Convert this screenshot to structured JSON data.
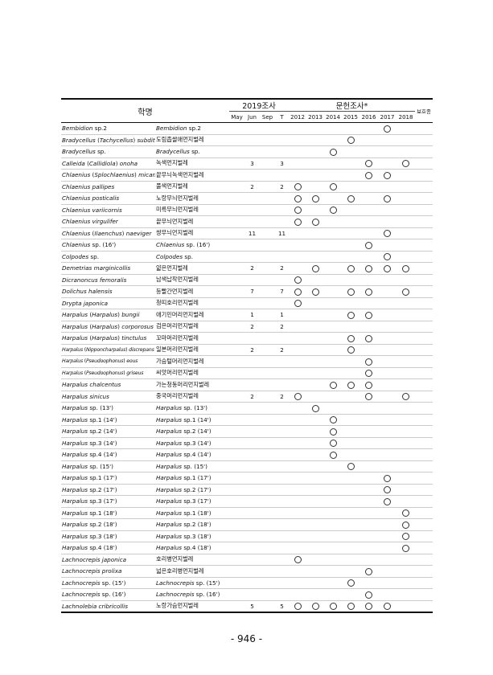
{
  "header": {
    "name_label": "학명",
    "survey_group": "2019조사",
    "lit_group": "문헌조사*",
    "protected_label": "보호종",
    "columns": [
      "May",
      "Jun",
      "Sep",
      "T",
      "2012",
      "2013",
      "2014",
      "2015",
      "2016",
      "2017",
      "2018"
    ]
  },
  "rows": [
    {
      "sci": [
        [
          "Bembidion",
          1
        ],
        [
          " sp.2",
          0
        ]
      ],
      "kor": [
        [
          "Bembidion",
          1
        ],
        [
          " sp.2",
          0
        ]
      ],
      "years": [
        "2017"
      ]
    },
    {
      "sci": [
        [
          "Bradycellus",
          1
        ],
        [
          " (",
          0
        ],
        [
          "Tachycellus",
          1
        ],
        [
          ") ",
          0
        ],
        [
          "subditus",
          1
        ]
      ],
      "kor": [
        [
          "도림좁쌀애먼지벌레",
          0
        ]
      ],
      "years": [
        "2015"
      ]
    },
    {
      "sci": [
        [
          "Bradycellus",
          1
        ],
        [
          " sp.",
          0
        ]
      ],
      "kor": [
        [
          "Bradycellus",
          1
        ],
        [
          " sp.",
          0
        ]
      ],
      "years": [
        "2014"
      ]
    },
    {
      "sci": [
        [
          "Calleida",
          1
        ],
        [
          " (",
          0
        ],
        [
          "Callidiola",
          1
        ],
        [
          ") ",
          0
        ],
        [
          "onoha",
          1
        ]
      ],
      "kor": [
        [
          "녹색먼지벌레",
          0
        ]
      ],
      "Jun": "3",
      "T": "3",
      "years": [
        "2016",
        "2018"
      ]
    },
    {
      "sci": [
        [
          "Chlaenius",
          1
        ],
        [
          " (",
          0
        ],
        [
          "Splochlaenius",
          1
        ],
        [
          ") ",
          0
        ],
        [
          "micans",
          1
        ]
      ],
      "kor": [
        [
          "끝무늬녹색먼지벌레",
          0
        ]
      ],
      "years": [
        "2016",
        "2017"
      ]
    },
    {
      "sci": [
        [
          "Chlaenius pallipes",
          1
        ]
      ],
      "kor": [
        [
          "풀색먼지벌레",
          0
        ]
      ],
      "Jun": "2",
      "T": "2",
      "years": [
        "2012",
        "2014"
      ]
    },
    {
      "sci": [
        [
          "Chlaenius posticalis",
          1
        ]
      ],
      "kor": [
        [
          "노랑무늬먼지벌레",
          0
        ]
      ],
      "years": [
        "2012",
        "2013",
        "2015",
        "2017"
      ]
    },
    {
      "sci": [
        [
          "Chlaenius variicornis",
          1
        ]
      ],
      "kor": [
        [
          "미륵무늬먼지벌레",
          0
        ]
      ],
      "years": [
        "2012",
        "2014"
      ]
    },
    {
      "sci": [
        [
          "Chlaenius virgulifer",
          1
        ]
      ],
      "kor": [
        [
          "끝무늬먼지벌레",
          0
        ]
      ],
      "years": [
        "2012",
        "2013"
      ]
    },
    {
      "sci": [
        [
          "Chlaenius",
          1
        ],
        [
          " (",
          0
        ],
        [
          "Ilaenchus",
          1
        ],
        [
          ") ",
          0
        ],
        [
          "naeviger",
          1
        ]
      ],
      "kor": [
        [
          "쌍무늬먼지벌레",
          0
        ]
      ],
      "Jun": "11",
      "T": "11",
      "years": [
        "2017"
      ]
    },
    {
      "sci": [
        [
          "Chlaenius",
          1
        ],
        [
          " sp. (16')",
          0
        ]
      ],
      "kor": [
        [
          "Chlaenius",
          1
        ],
        [
          " sp. (16')",
          0
        ]
      ],
      "years": [
        "2016"
      ]
    },
    {
      "sci": [
        [
          "Colpodes",
          1
        ],
        [
          " sp.",
          0
        ]
      ],
      "kor": [
        [
          "Colpodes",
          1
        ],
        [
          " sp.",
          0
        ]
      ],
      "years": [
        "2017"
      ]
    },
    {
      "sci": [
        [
          "Demetrias marginicollis",
          1
        ]
      ],
      "kor": [
        [
          "얇은먼지벌레",
          0
        ]
      ],
      "Jun": "2",
      "T": "2",
      "years": [
        "2013",
        "2015",
        "2016",
        "2017",
        "2018"
      ]
    },
    {
      "sci": [
        [
          "Dicranoncus femoralis",
          1
        ]
      ],
      "kor": [
        [
          "남색납작먼지벌레",
          0
        ]
      ],
      "years": [
        "2012"
      ]
    },
    {
      "sci": [
        [
          "Dolichus halensis",
          1
        ]
      ],
      "kor": [
        [
          "등빨간먼지벌레",
          0
        ]
      ],
      "Jun": "7",
      "T": "7",
      "years": [
        "2012",
        "2013",
        "2015",
        "2016",
        "2018"
      ]
    },
    {
      "sci": [
        [
          "Drypta japonica",
          1
        ]
      ],
      "kor": [
        [
          "청띠호리먼지벌레",
          0
        ]
      ],
      "years": [
        "2012"
      ]
    },
    {
      "sci": [
        [
          "Harpalus",
          1
        ],
        [
          " (",
          0
        ],
        [
          "Harpalus",
          1
        ],
        [
          ") ",
          0
        ],
        [
          "bungii",
          1
        ]
      ],
      "kor": [
        [
          "애기민머리먼지벌레",
          0
        ]
      ],
      "Jun": "1",
      "T": "1",
      "years": [
        "2015",
        "2016"
      ]
    },
    {
      "sci": [
        [
          "Harpalus",
          1
        ],
        [
          " (",
          0
        ],
        [
          "Harpalus",
          1
        ],
        [
          ") ",
          0
        ],
        [
          "corporosus",
          1
        ]
      ],
      "kor": [
        [
          "검은머리먼지벌레",
          0
        ]
      ],
      "Jun": "2",
      "T": "2",
      "years": []
    },
    {
      "sci": [
        [
          "Harpalus",
          1
        ],
        [
          " (",
          0
        ],
        [
          "Harpalus",
          1
        ],
        [
          ") ",
          0
        ],
        [
          "tinctulus",
          1
        ]
      ],
      "kor": [
        [
          "꼬마머리먼지벌레",
          0
        ]
      ],
      "years": [
        "2015",
        "2016"
      ]
    },
    {
      "sci": [
        [
          "Harpalus",
          1
        ],
        [
          " (",
          0
        ],
        [
          "Nipponcharpalus",
          1
        ],
        [
          ") ",
          0
        ],
        [
          "discrepans",
          1
        ]
      ],
      "kor": [
        [
          "일본머리먼지벌레",
          0
        ]
      ],
      "Jun": "2",
      "T": "2",
      "years": [
        "2015"
      ],
      "small": true
    },
    {
      "sci": [
        [
          "Harpalus",
          1
        ],
        [
          " (",
          0
        ],
        [
          "Pseudoophonus",
          1
        ],
        [
          ") ",
          0
        ],
        [
          "eous",
          1
        ]
      ],
      "kor": [
        [
          "가슴털머리먼지벌레",
          0
        ]
      ],
      "years": [
        "2016"
      ],
      "small": true
    },
    {
      "sci": [
        [
          "Harpalus",
          1
        ],
        [
          " (",
          0
        ],
        [
          "Pseudoophonus",
          1
        ],
        [
          ") ",
          0
        ],
        [
          "griseus",
          1
        ]
      ],
      "kor": [
        [
          "씨앗머리먼지벌레",
          0
        ]
      ],
      "years": [
        "2016"
      ],
      "small": true
    },
    {
      "sci": [
        [
          "Harpalus chalcentus",
          1
        ]
      ],
      "kor": [
        [
          "가는청동머리먼지벌레",
          0
        ]
      ],
      "years": [
        "2014",
        "2015",
        "2016"
      ]
    },
    {
      "sci": [
        [
          "Harpalus sinicus",
          1
        ]
      ],
      "kor": [
        [
          "중국머리먼지벌레",
          0
        ]
      ],
      "Jun": "2",
      "T": "2",
      "years": [
        "2012",
        "2016",
        "2018"
      ]
    },
    {
      "sci": [
        [
          "Harpalus",
          1
        ],
        [
          " sp. (13')",
          0
        ]
      ],
      "kor": [
        [
          "Harpalus",
          1
        ],
        [
          " sp. (13')",
          0
        ]
      ],
      "years": [
        "2013"
      ]
    },
    {
      "sci": [
        [
          "Harpalus",
          1
        ],
        [
          " sp.1 (14')",
          0
        ]
      ],
      "kor": [
        [
          "Harpalus",
          1
        ],
        [
          " sp.1 (14')",
          0
        ]
      ],
      "years": [
        "2014"
      ]
    },
    {
      "sci": [
        [
          "Harpalus",
          1
        ],
        [
          " sp.2 (14')",
          0
        ]
      ],
      "kor": [
        [
          "Harpalus",
          1
        ],
        [
          " sp.2 (14')",
          0
        ]
      ],
      "years": [
        "2014"
      ]
    },
    {
      "sci": [
        [
          "Harpalus",
          1
        ],
        [
          " sp.3 (14')",
          0
        ]
      ],
      "kor": [
        [
          "Harpalus",
          1
        ],
        [
          " sp.3 (14')",
          0
        ]
      ],
      "years": [
        "2014"
      ]
    },
    {
      "sci": [
        [
          "Harpalus",
          1
        ],
        [
          " sp.4 (14')",
          0
        ]
      ],
      "kor": [
        [
          "Harpalus",
          1
        ],
        [
          " sp.4 (14')",
          0
        ]
      ],
      "years": [
        "2014"
      ]
    },
    {
      "sci": [
        [
          "Harpalus",
          1
        ],
        [
          " sp. (15')",
          0
        ]
      ],
      "kor": [
        [
          "Harpalus",
          1
        ],
        [
          " sp. (15')",
          0
        ]
      ],
      "years": [
        "2015"
      ]
    },
    {
      "sci": [
        [
          "Harpalus",
          1
        ],
        [
          " sp.1 (17')",
          0
        ]
      ],
      "kor": [
        [
          "Harpalus",
          1
        ],
        [
          " sp.1 (17')",
          0
        ]
      ],
      "years": [
        "2017"
      ]
    },
    {
      "sci": [
        [
          "Harpalus",
          1
        ],
        [
          " sp.2 (17')",
          0
        ]
      ],
      "kor": [
        [
          "Harpalus",
          1
        ],
        [
          " sp.2 (17')",
          0
        ]
      ],
      "years": [
        "2017"
      ]
    },
    {
      "sci": [
        [
          "Harpalus",
          1
        ],
        [
          " sp.3 (17')",
          0
        ]
      ],
      "kor": [
        [
          "Harpalus",
          1
        ],
        [
          " sp.3 (17')",
          0
        ]
      ],
      "years": [
        "2017"
      ]
    },
    {
      "sci": [
        [
          "Harpalus",
          1
        ],
        [
          " sp.1 (18')",
          0
        ]
      ],
      "kor": [
        [
          "Harpalus",
          1
        ],
        [
          " sp.1 (18')",
          0
        ]
      ],
      "years": [
        "2018"
      ]
    },
    {
      "sci": [
        [
          "Harpalus",
          1
        ],
        [
          " sp.2 (18')",
          0
        ]
      ],
      "kor": [
        [
          "Harpalus",
          1
        ],
        [
          " sp.2 (18')",
          0
        ]
      ],
      "years": [
        "2018"
      ]
    },
    {
      "sci": [
        [
          "Harpalus",
          1
        ],
        [
          " sp.3 (18')",
          0
        ]
      ],
      "kor": [
        [
          "Harpalus",
          1
        ],
        [
          " sp.3 (18')",
          0
        ]
      ],
      "years": [
        "2018"
      ]
    },
    {
      "sci": [
        [
          "Harpalus",
          1
        ],
        [
          " sp.4 (18')",
          0
        ]
      ],
      "kor": [
        [
          "Harpalus",
          1
        ],
        [
          " sp.4 (18')",
          0
        ]
      ],
      "years": [
        "2018"
      ]
    },
    {
      "sci": [
        [
          "Lachnocrepis japonica",
          1
        ]
      ],
      "kor": [
        [
          "호리병먼지벌레",
          0
        ]
      ],
      "years": [
        "2012"
      ]
    },
    {
      "sci": [
        [
          "Lachnocrepis prolixa",
          1
        ]
      ],
      "kor": [
        [
          "넓은호리병먼지벌레",
          0
        ]
      ],
      "years": [
        "2016"
      ]
    },
    {
      "sci": [
        [
          "Lachnocrepis",
          1
        ],
        [
          " sp. (15')",
          0
        ]
      ],
      "kor": [
        [
          "Lachnocrepis",
          1
        ],
        [
          " sp. (15')",
          0
        ]
      ],
      "years": [
        "2015"
      ]
    },
    {
      "sci": [
        [
          "Lachnocrepis",
          1
        ],
        [
          " sp. (16')",
          0
        ]
      ],
      "kor": [
        [
          "Lachnocrepis",
          1
        ],
        [
          " sp. (16')",
          0
        ]
      ],
      "years": [
        "2016"
      ]
    },
    {
      "sci": [
        [
          "Lachnolebia cribricollis",
          1
        ]
      ],
      "kor": [
        [
          "노랑가슴먼지벌레",
          0
        ]
      ],
      "Jun": "5",
      "T": "5",
      "years": [
        "2012",
        "2013",
        "2014",
        "2015",
        "2016",
        "2017"
      ]
    }
  ],
  "page_number": "- 946 -"
}
